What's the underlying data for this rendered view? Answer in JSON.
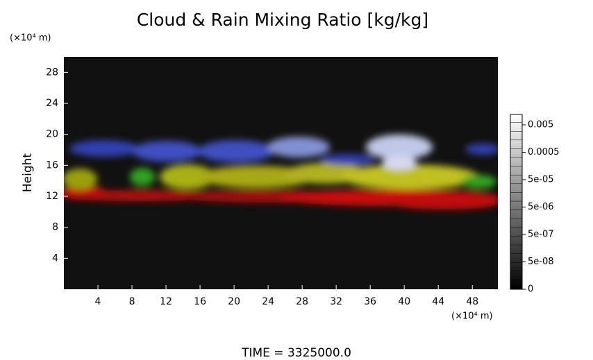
{
  "chart_data": {
    "type": "volume-render",
    "title": "Cloud & Rain Mixing Ratio [kg/kg]",
    "x_unit": "(×10⁴ m)",
    "y_unit": "(×10⁴ m)",
    "ylabel": "Height",
    "xlim": [
      0,
      51
    ],
    "xticks": [
      4,
      8,
      12,
      16,
      20,
      24,
      28,
      32,
      36,
      40,
      44,
      48
    ],
    "ylim": [
      0,
      30
    ],
    "yticks": [
      4,
      8,
      12,
      16,
      20,
      24,
      28
    ],
    "colorbar_ticks": [
      {
        "value": 0,
        "label": "0"
      },
      {
        "value": 5e-08,
        "label": "5e-08"
      },
      {
        "value": 5e-07,
        "label": "5e-07"
      },
      {
        "value": 5e-06,
        "label": "5e-06"
      },
      {
        "value": 5e-05,
        "label": "5e-05"
      },
      {
        "value": 0.0005,
        "label": "0.0005"
      },
      {
        "value": 0.005,
        "label": "0.005"
      }
    ],
    "footer": "TIME = 3325000.0"
  }
}
